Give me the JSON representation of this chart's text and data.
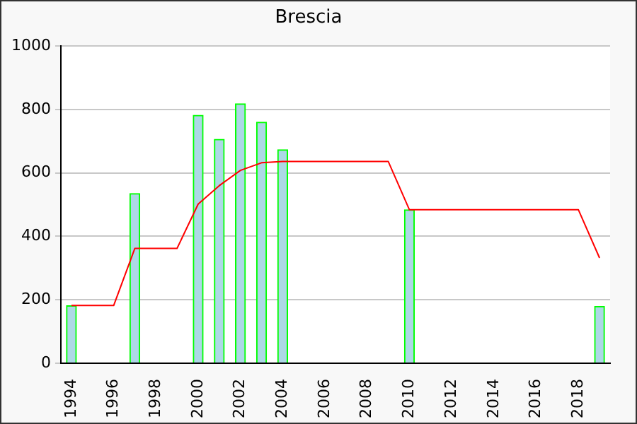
{
  "chart_data": {
    "type": "bar",
    "title": "Brescia",
    "xlim": [
      1993.5,
      2019.5
    ],
    "xticks": [
      1994,
      1996,
      1998,
      2000,
      2002,
      2004,
      2006,
      2008,
      2010,
      2012,
      2014,
      2016,
      2018
    ],
    "ylim": [
      0,
      1000
    ],
    "yticks": [
      0,
      200,
      400,
      600,
      800,
      1000
    ],
    "grid": "y",
    "series": [
      {
        "color": "#add8e6",
        "x": [
          1994,
          1997,
          2000,
          2001,
          2002,
          2003,
          2004,
          2010,
          2019
        ],
        "values": [
          181,
          535,
          782,
          706,
          818,
          760,
          673,
          484,
          179
        ]
      },
      {
        "type": "line",
        "color": "#ff0000",
        "x": [
          1994,
          1995,
          1996,
          1997,
          1998,
          1999,
          2000,
          2001,
          2002,
          2003,
          2004,
          2005,
          2006,
          2007,
          2008,
          2009,
          2010,
          2011,
          2012,
          2013,
          2014,
          2015,
          2016,
          2017,
          2018,
          2019
        ],
        "values": [
          182,
          182,
          182,
          362,
          362,
          362,
          502,
          560,
          608,
          632,
          636,
          636,
          636,
          636,
          636,
          636,
          484,
          484,
          484,
          484,
          484,
          484,
          484,
          484,
          484,
          332
        ]
      }
    ]
  }
}
